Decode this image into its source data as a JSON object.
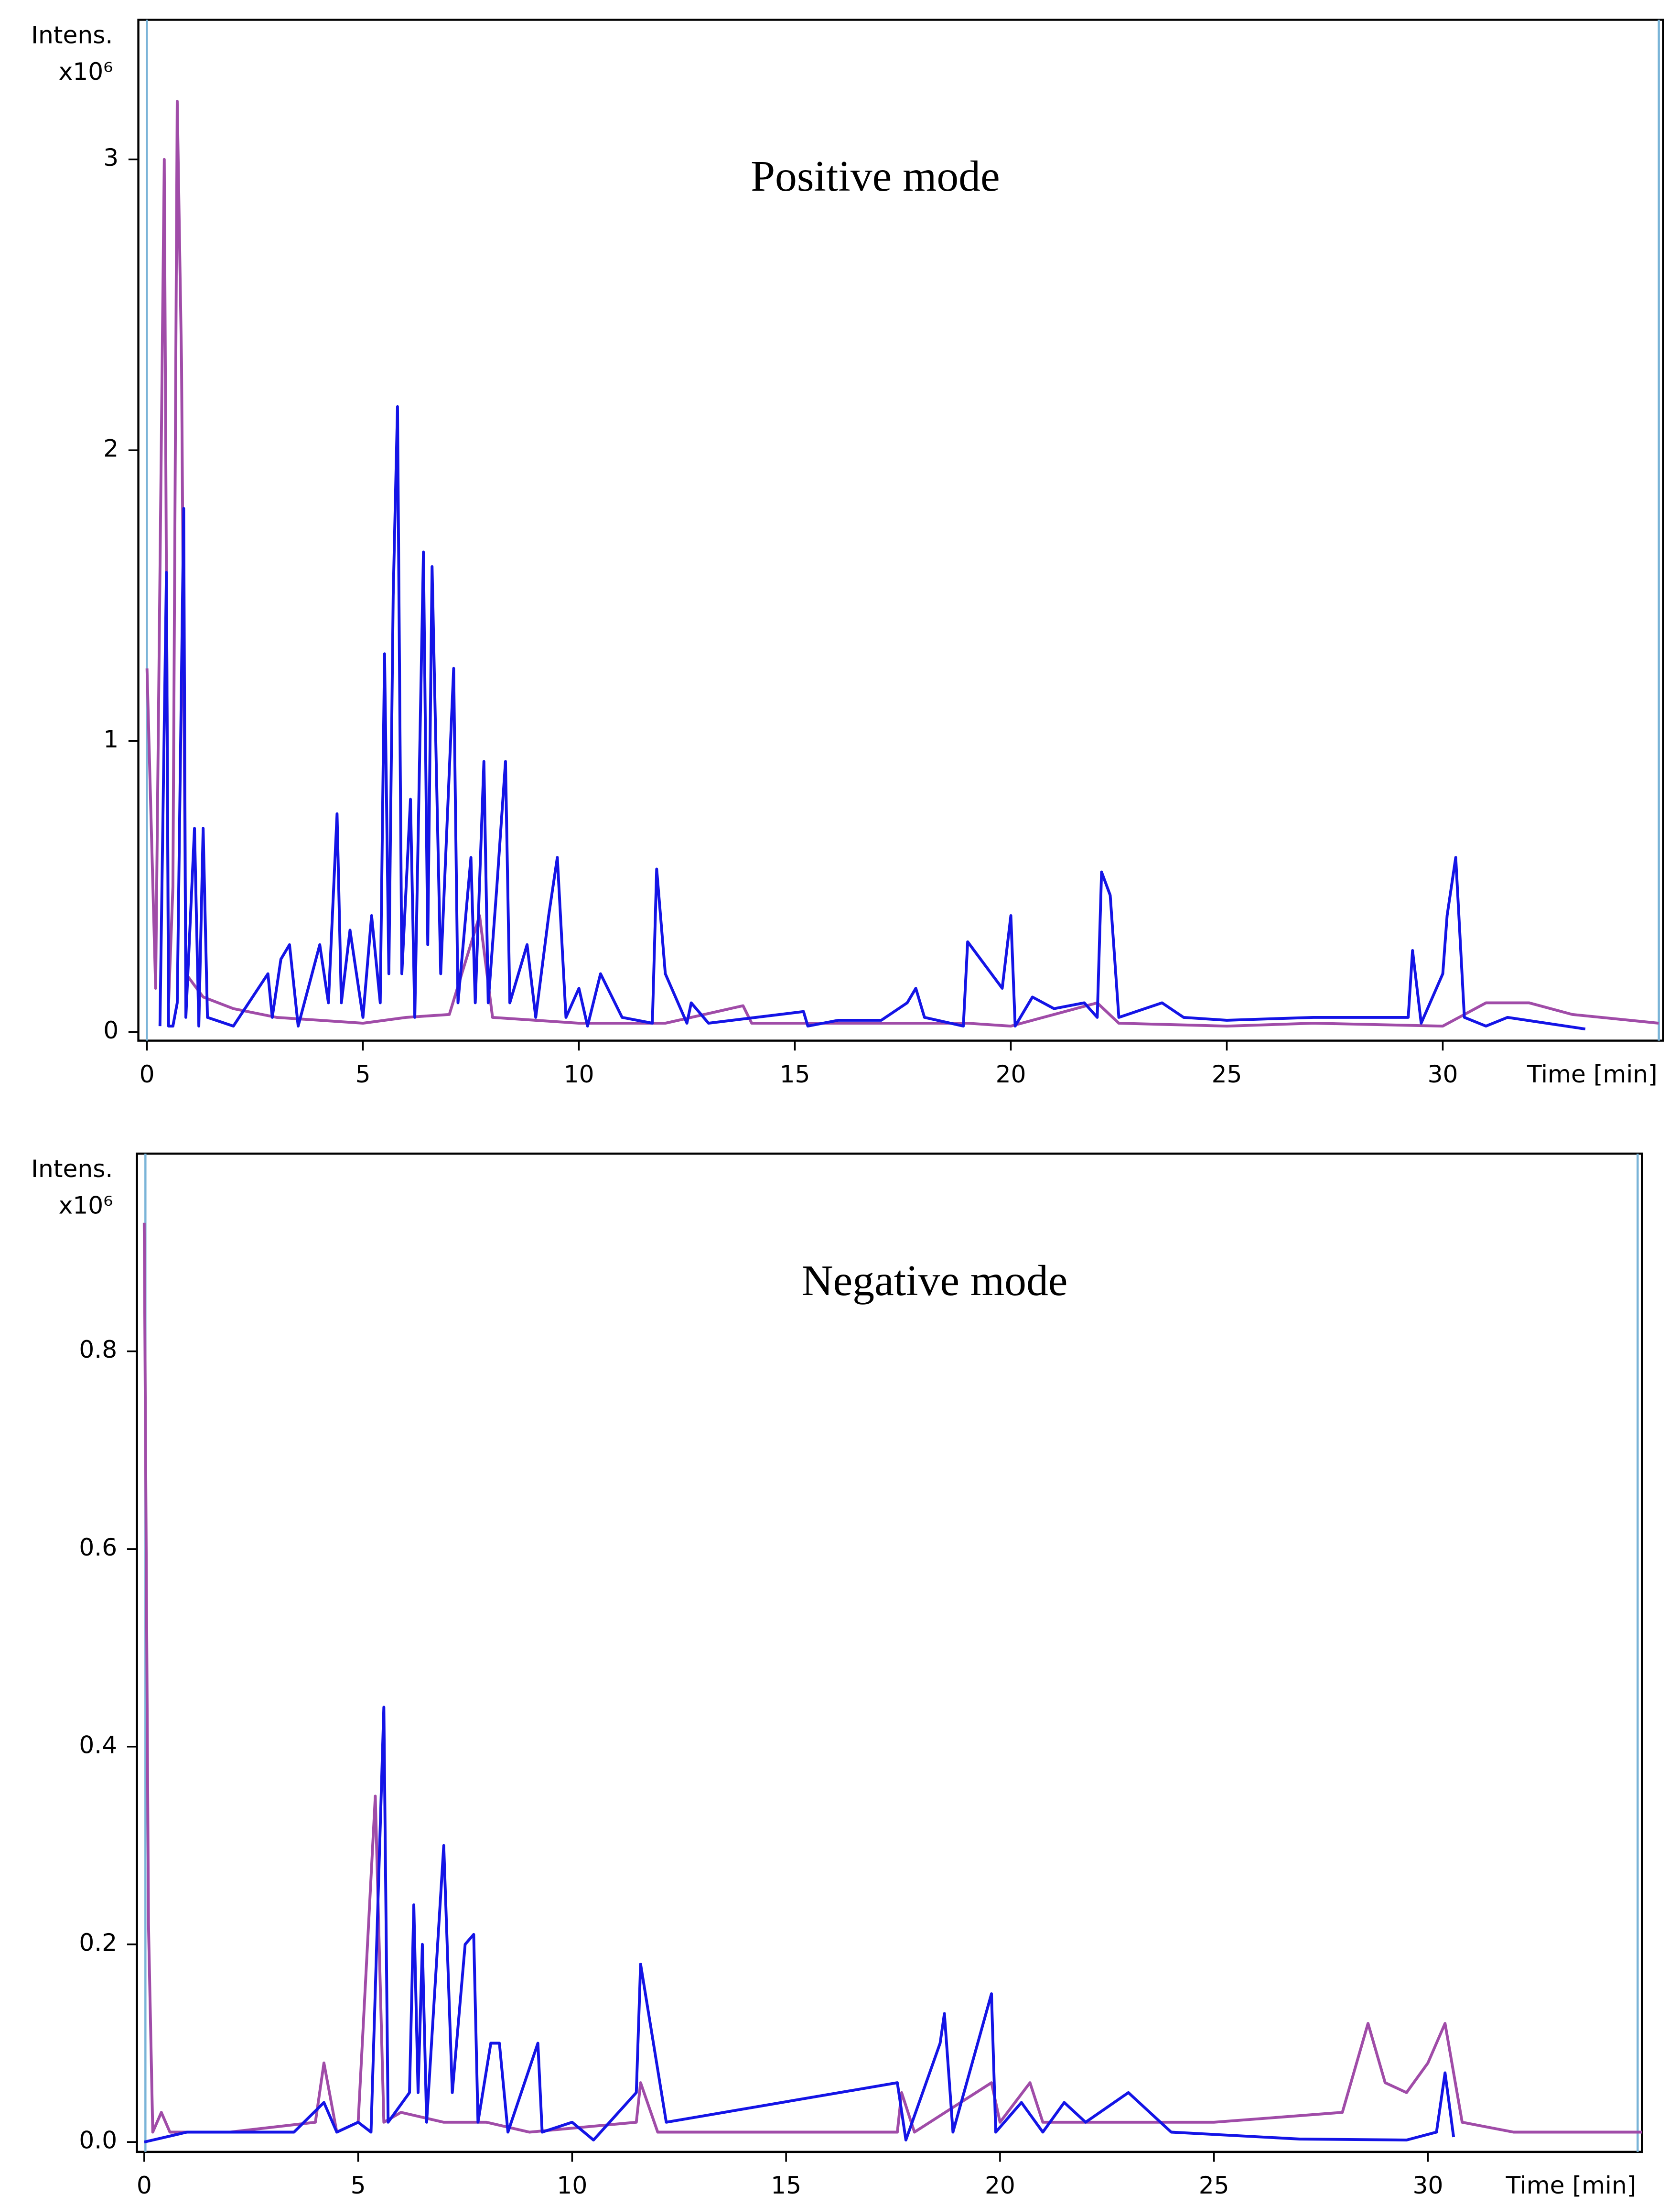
{
  "chart_data": [
    {
      "type": "line",
      "title": "Positive mode",
      "y_label": "Intens.",
      "y_scale_label": "x10⁶",
      "x_label": "Time [min]",
      "xlim": [
        -0.2,
        35.1
      ],
      "ylim": [
        -0.03,
        3.48
      ],
      "xticks": [
        0,
        5,
        10,
        15,
        20,
        25,
        30
      ],
      "yticks": [
        0,
        1,
        2,
        3
      ],
      "series": [
        {
          "color": "#a04ca8",
          "x": [
            0,
            0.2,
            0.4,
            0.5,
            0.6,
            0.7,
            0.8,
            0.9,
            1.3,
            2,
            3,
            4,
            5,
            6,
            7,
            7.7,
            8,
            10,
            12,
            13.8,
            14,
            17,
            19,
            20,
            22,
            22.5,
            25,
            27,
            30,
            31,
            32,
            33,
            35
          ],
          "values": [
            1.25,
            0.15,
            3.0,
            0.1,
            0.5,
            3.2,
            2.3,
            0.2,
            0.12,
            0.08,
            0.05,
            0.04,
            0.03,
            0.05,
            0.06,
            0.4,
            0.05,
            0.03,
            0.03,
            0.09,
            0.03,
            0.03,
            0.03,
            0.02,
            0.1,
            0.03,
            0.02,
            0.03,
            0.02,
            0.1,
            0.1,
            0.06,
            0.03
          ]
        },
        {
          "color": "#1414e6",
          "x": [
            0.3,
            0.45,
            0.5,
            0.6,
            0.7,
            0.85,
            0.9,
            1.1,
            1.2,
            1.3,
            1.4,
            2,
            2.8,
            2.9,
            3.1,
            3.3,
            3.5,
            4,
            4.2,
            4.4,
            4.5,
            4.7,
            5,
            5.2,
            5.4,
            5.5,
            5.6,
            5.7,
            5.8,
            5.9,
            6.1,
            6.2,
            6.4,
            6.5,
            6.6,
            6.8,
            7.1,
            7.2,
            7.5,
            7.6,
            7.8,
            7.9,
            8.1,
            8.3,
            8.4,
            8.8,
            9,
            9.3,
            9.5,
            9.7,
            10,
            10.2,
            10.5,
            11,
            11.7,
            11.8,
            12,
            12.5,
            12.6,
            13,
            15.2,
            15.3,
            16,
            17,
            17.6,
            17.8,
            18,
            18.9,
            19,
            19.8,
            20,
            20.1,
            20.5,
            21,
            21.7,
            22,
            22.1,
            22.3,
            22.5,
            23.5,
            24,
            25,
            27,
            29.2,
            29.3,
            29.5,
            30,
            30.1,
            30.3,
            30.5,
            31,
            31.5,
            33.3
          ],
          "values": [
            0.02,
            1.58,
            0.02,
            0.02,
            0.1,
            1.8,
            0.05,
            0.7,
            0.02,
            0.7,
            0.05,
            0.02,
            0.2,
            0.05,
            0.25,
            0.3,
            0.02,
            0.3,
            0.1,
            0.75,
            0.1,
            0.35,
            0.05,
            0.4,
            0.1,
            1.3,
            0.2,
            1.5,
            2.15,
            0.2,
            0.8,
            0.05,
            1.65,
            0.3,
            1.6,
            0.2,
            1.25,
            0.1,
            0.6,
            0.1,
            0.93,
            0.1,
            0.5,
            0.93,
            0.1,
            0.3,
            0.05,
            0.4,
            0.6,
            0.05,
            0.15,
            0.02,
            0.2,
            0.05,
            0.03,
            0.56,
            0.2,
            0.03,
            0.1,
            0.03,
            0.07,
            0.02,
            0.04,
            0.04,
            0.1,
            0.15,
            0.05,
            0.02,
            0.31,
            0.15,
            0.4,
            0.02,
            0.12,
            0.08,
            0.1,
            0.05,
            0.55,
            0.47,
            0.05,
            0.1,
            0.05,
            0.04,
            0.05,
            0.05,
            0.28,
            0.03,
            0.2,
            0.4,
            0.6,
            0.05,
            0.02,
            0.05,
            0.01
          ]
        }
      ]
    },
    {
      "type": "line",
      "title": "Negative mode",
      "y_label": "Intens.",
      "y_scale_label": "x10⁶",
      "x_label": "Time [min]",
      "xlim": [
        -0.17,
        35.0
      ],
      "ylim": [
        -0.01,
        1.0
      ],
      "xticks": [
        0,
        5,
        10,
        15,
        20,
        25,
        30
      ],
      "yticks": [
        {
          "value": 0,
          "label": "0.0"
        },
        0.2,
        0.4,
        0.6,
        0.8
      ],
      "series": [
        {
          "color": "#a04ca8",
          "x": [
            0,
            0.1,
            0.2,
            0.4,
            0.6,
            2,
            4,
            4.2,
            4.5,
            5,
            5.4,
            5.6,
            6,
            7,
            8,
            9,
            11.5,
            11.6,
            12,
            15,
            17.6,
            17.7,
            18,
            19.8,
            20,
            20.7,
            21,
            25,
            28,
            28.6,
            29,
            29.5,
            30,
            30.4,
            30.8,
            32,
            35
          ],
          "values": [
            0.93,
            0.22,
            0.01,
            0.03,
            0.01,
            0.01,
            0.02,
            0.08,
            0.01,
            0.02,
            0.35,
            0.02,
            0.03,
            0.02,
            0.02,
            0.01,
            0.02,
            0.06,
            0.01,
            0.01,
            0.01,
            0.05,
            0.01,
            0.06,
            0.02,
            0.06,
            0.02,
            0.02,
            0.03,
            0.12,
            0.06,
            0.05,
            0.08,
            0.12,
            0.02,
            0.01,
            0.01
          ]
        },
        {
          "color": "#1414e6",
          "x": [
            0,
            1,
            3.5,
            4.2,
            4.5,
            5,
            5.3,
            5.6,
            5.7,
            6.2,
            6.3,
            6.4,
            6.5,
            6.6,
            7,
            7.2,
            7.5,
            7.7,
            7.8,
            8.1,
            8.3,
            8.5,
            9.2,
            9.3,
            10,
            10.5,
            11.5,
            11.6,
            12.2,
            17.6,
            17.8,
            18.6,
            18.7,
            18.9,
            19.8,
            19.9,
            20.5,
            21,
            21.5,
            22,
            23,
            24,
            27,
            29.5,
            30.2,
            30.4,
            30.6
          ],
          "values": [
            0,
            0.01,
            0.01,
            0.04,
            0.01,
            0.02,
            0.01,
            0.44,
            0.02,
            0.05,
            0.24,
            0.05,
            0.2,
            0.02,
            0.3,
            0.05,
            0.2,
            0.21,
            0.02,
            0.1,
            0.1,
            0.01,
            0.1,
            0.01,
            0.02,
            0.002,
            0.05,
            0.18,
            0.02,
            0.06,
            0.002,
            0.1,
            0.13,
            0.01,
            0.15,
            0.01,
            0.04,
            0.01,
            0.04,
            0.02,
            0.05,
            0.01,
            0.003,
            0.002,
            0.01,
            0.07,
            0.005
          ]
        }
      ]
    }
  ]
}
